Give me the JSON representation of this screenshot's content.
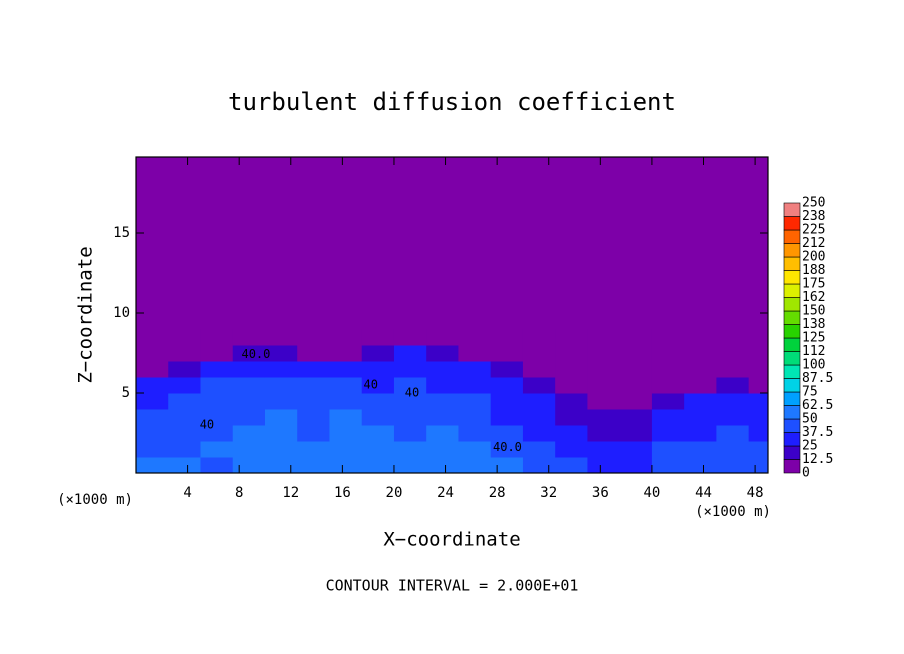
{
  "chart_data": {
    "type": "heatmap",
    "title": "turbulent diffusion coefficient",
    "xlabel": "X−coordinate",
    "ylabel": "Z−coordinate",
    "x_unit": "(×1000 m)",
    "y_unit": "(×1000 m)",
    "footer": "CONTOUR INTERVAL = 2.000E+01",
    "xlim": [
      0,
      49
    ],
    "ylim": [
      0,
      19.75
    ],
    "xticks": [
      4,
      8,
      12,
      16,
      20,
      24,
      28,
      32,
      36,
      40,
      44,
      48
    ],
    "yticks": [
      5,
      10,
      15
    ],
    "xbins": [
      0,
      2.5,
      5,
      7.5,
      10,
      12.5,
      15,
      17.5,
      20,
      22.5,
      25,
      27.5,
      30,
      32.5,
      35,
      37.5,
      40,
      42.5,
      45,
      47.5,
      50
    ],
    "ybins": [
      0,
      1,
      2,
      3,
      4,
      5,
      6,
      7,
      8,
      9
    ],
    "values": [
      [
        50,
        50,
        45,
        50,
        55,
        50,
        60,
        55,
        50,
        60,
        55,
        50,
        45,
        40,
        35,
        35,
        40,
        45,
        45,
        40
      ],
      [
        45,
        45,
        50,
        50,
        55,
        50,
        55,
        50,
        50,
        55,
        50,
        45,
        40,
        35,
        30,
        30,
        40,
        40,
        45,
        40
      ],
      [
        40,
        45,
        45,
        50,
        50,
        45,
        50,
        50,
        45,
        50,
        45,
        40,
        35,
        25,
        20,
        20,
        30,
        35,
        40,
        35
      ],
      [
        40,
        40,
        45,
        45,
        50,
        45,
        50,
        45,
        45,
        45,
        40,
        35,
        30,
        20,
        15,
        15,
        25,
        30,
        35,
        30
      ],
      [
        35,
        40,
        40,
        45,
        45,
        45,
        45,
        40,
        45,
        40,
        40,
        30,
        25,
        15,
        10,
        10,
        15,
        25,
        30,
        25
      ],
      [
        25,
        35,
        40,
        40,
        40,
        40,
        40,
        35,
        40,
        35,
        35,
        25,
        15,
        8,
        5,
        5,
        8,
        10,
        15,
        10
      ],
      [
        5,
        15,
        30,
        35,
        35,
        30,
        30,
        30,
        35,
        30,
        30,
        15,
        5,
        3,
        3,
        3,
        3,
        3,
        5,
        5
      ],
      [
        0,
        3,
        10,
        15,
        15,
        10,
        10,
        20,
        25,
        20,
        10,
        5,
        2,
        0,
        0,
        0,
        0,
        0,
        0,
        0
      ],
      [
        0,
        0,
        0,
        0,
        0,
        0,
        0,
        3,
        5,
        3,
        0,
        0,
        0,
        0,
        0,
        0,
        0,
        0,
        0,
        0
      ]
    ],
    "levels": [
      0,
      12.5,
      25,
      37.5,
      50,
      62.5,
      75,
      87.5,
      100,
      {
        "value": 112.5,
        "label": "112"
      },
      125,
      {
        "value": 137.5,
        "label": "138"
      },
      150,
      {
        "value": 162.5,
        "label": "162"
      },
      175,
      {
        "value": 187.5,
        "label": "188"
      },
      200,
      {
        "value": 212.5,
        "label": "212"
      },
      225,
      {
        "value": 237.5,
        "label": "238"
      },
      250
    ],
    "colors": [
      "#7d00a8",
      "#3c00c8",
      "#1e1eff",
      "#1e50ff",
      "#1e78ff",
      "#00a0ff",
      "#00d2e6",
      "#00e6b4",
      "#00dc78",
      "#00d23c",
      "#28d200",
      "#64dc00",
      "#a0e600",
      "#dcf000",
      "#ffe600",
      "#ffbe00",
      "#ff9600",
      "#ff6400",
      "#ff2800",
      "#f08080"
    ],
    "annotations": [
      {
        "text": "40.0",
        "x": 9.3,
        "y": 7.4
      },
      {
        "text": "40",
        "x": 5.5,
        "y": 3
      },
      {
        "text": "40.0",
        "x": 28.8,
        "y": 1.6
      },
      {
        "text": "40",
        "x": 18.2,
        "y": 5.5
      },
      {
        "text": "40",
        "x": 21.4,
        "y": 5
      }
    ]
  }
}
